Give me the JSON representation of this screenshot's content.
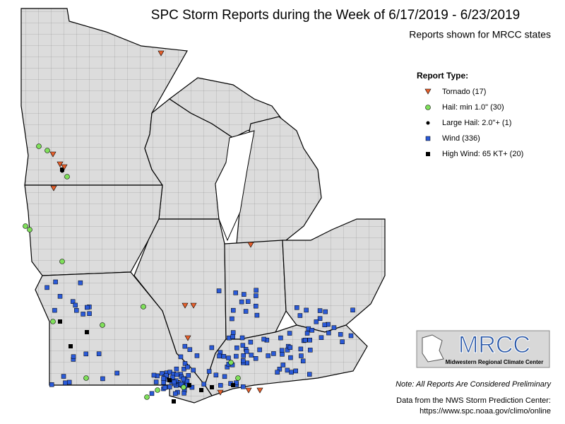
{
  "title": "SPC Storm Reports during the Week of 6/17/2019 - 6/23/2019",
  "subtitle": "Reports shown for MRCC states",
  "legend": {
    "title": "Report Type:",
    "items": [
      "Tornado (17)",
      "Hail: min 1.0\" (30)",
      "Large Hail: 2.0\"+ (1)",
      "Wind (336)",
      "High Wind: 65 KT+ (20)"
    ]
  },
  "logo": {
    "name": "MRCC",
    "subtitle": "Midwestern Regional Climate Center"
  },
  "note": "Note: All Reports Are Considered Preliminary",
  "source": [
    "Data from the NWS Storm Prediction Center:",
    "https://www.spc.noaa.gov/climo/online"
  ]
}
